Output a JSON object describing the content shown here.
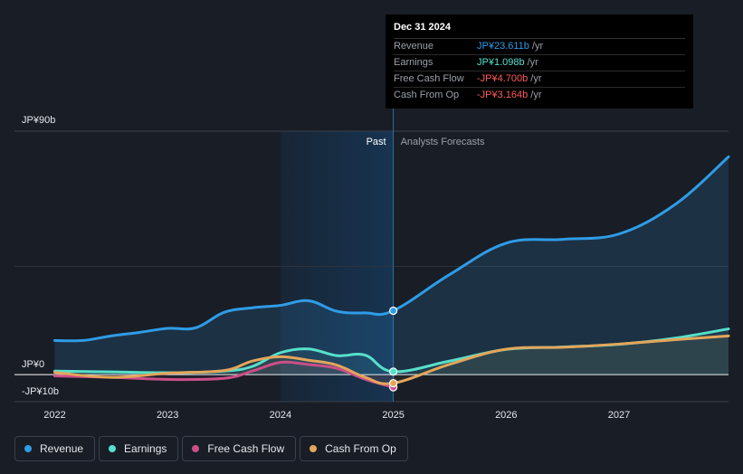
{
  "colors": {
    "background": "#181d26",
    "revenue": "#2f9ce6",
    "earnings": "#57e0cc",
    "fcf": "#cb4f87",
    "cfo": "#e3a65a",
    "negative": "#ff5a5a",
    "past_region": "#173451"
  },
  "tooltip": {
    "date": "Dec 31 2024",
    "rows": [
      {
        "label": "Revenue",
        "value": "JP¥23.611b",
        "unit": "/yr",
        "color": "#2f9ce6"
      },
      {
        "label": "Earnings",
        "value": "JP¥1.098b",
        "unit": "/yr",
        "color": "#57e0cc"
      },
      {
        "label": "Free Cash Flow",
        "value": "-JP¥4.700b",
        "unit": "/yr",
        "color": "#ff5a5a"
      },
      {
        "label": "Cash From Op",
        "value": "-JP¥3.164b",
        "unit": "/yr",
        "color": "#ff5a5a"
      }
    ]
  },
  "chart_data": {
    "type": "line",
    "title": "",
    "xlabel": "",
    "ylabel": "",
    "y_axis_labels": {
      "top": "JP¥90b",
      "zero": "JP¥0",
      "bottom": "-JP¥10b"
    },
    "ylim": [
      -10,
      90
    ],
    "xlim": [
      2021.9,
      2027.97
    ],
    "divider_x": 2025.0,
    "past_shade_start": 2024.0,
    "past_label": "Past",
    "forecast_label": "Analysts Forecasts",
    "x_ticks": [
      {
        "value": 2022,
        "label": "2022"
      },
      {
        "value": 2023,
        "label": "2023"
      },
      {
        "value": 2024,
        "label": "2024"
      },
      {
        "value": 2025,
        "label": "2025"
      },
      {
        "value": 2026,
        "label": "2026"
      },
      {
        "value": 2027,
        "label": "2027"
      }
    ],
    "series": [
      {
        "name": "Revenue",
        "color": "#2f9ce6",
        "filled": true,
        "points": [
          [
            2022.0,
            12.6
          ],
          [
            2022.25,
            12.6
          ],
          [
            2022.5,
            14.3
          ],
          [
            2022.75,
            15.6
          ],
          [
            2023.0,
            17.1
          ],
          [
            2023.25,
            17.3
          ],
          [
            2023.5,
            23.0
          ],
          [
            2023.75,
            24.7
          ],
          [
            2024.0,
            25.6
          ],
          [
            2024.25,
            27.3
          ],
          [
            2024.5,
            23.4
          ],
          [
            2024.75,
            22.8
          ],
          [
            2025.0,
            23.611
          ],
          [
            2025.5,
            37.0
          ],
          [
            2026.0,
            48.6
          ],
          [
            2026.5,
            50.0
          ],
          [
            2027.0,
            52.0
          ],
          [
            2027.5,
            63.0
          ],
          [
            2027.97,
            80.5
          ]
        ]
      },
      {
        "name": "Earnings",
        "color": "#57e0cc",
        "filled": false,
        "points": [
          [
            2022.0,
            1.3
          ],
          [
            2022.5,
            1.0
          ],
          [
            2023.0,
            0.7
          ],
          [
            2023.5,
            1.3
          ],
          [
            2023.75,
            3.0
          ],
          [
            2024.0,
            8.1
          ],
          [
            2024.25,
            9.5
          ],
          [
            2024.5,
            7.0
          ],
          [
            2024.75,
            7.2
          ],
          [
            2025.0,
            1.098
          ],
          [
            2025.5,
            5.0
          ],
          [
            2026.0,
            9.3
          ],
          [
            2026.5,
            10.2
          ],
          [
            2027.0,
            11.2
          ],
          [
            2027.5,
            13.5
          ],
          [
            2027.97,
            16.9
          ]
        ]
      },
      {
        "name": "Free Cash Flow",
        "color": "#cb4f87",
        "filled": false,
        "points": [
          [
            2022.0,
            -0.5
          ],
          [
            2022.5,
            -1.0
          ],
          [
            2023.0,
            -1.8
          ],
          [
            2023.5,
            -1.4
          ],
          [
            2023.75,
            1.3
          ],
          [
            2024.0,
            4.5
          ],
          [
            2024.25,
            3.7
          ],
          [
            2024.5,
            2.3
          ],
          [
            2024.75,
            -1.7
          ],
          [
            2025.0,
            -4.7
          ]
        ]
      },
      {
        "name": "Cash From Op",
        "color": "#e3a65a",
        "filled": false,
        "points": [
          [
            2022.0,
            0.8
          ],
          [
            2022.5,
            -1.0
          ],
          [
            2023.0,
            0.5
          ],
          [
            2023.5,
            1.5
          ],
          [
            2023.75,
            5.0
          ],
          [
            2024.0,
            6.6
          ],
          [
            2024.25,
            5.3
          ],
          [
            2024.5,
            3.5
          ],
          [
            2024.75,
            -1.0
          ],
          [
            2025.0,
            -3.164
          ],
          [
            2025.5,
            3.8
          ],
          [
            2026.0,
            9.4
          ],
          [
            2026.5,
            10.1
          ],
          [
            2027.0,
            11.3
          ],
          [
            2027.5,
            12.9
          ],
          [
            2027.97,
            14.3
          ]
        ]
      }
    ]
  },
  "legend": {
    "items": [
      {
        "label": "Revenue",
        "color": "#2f9ce6"
      },
      {
        "label": "Earnings",
        "color": "#57e0cc"
      },
      {
        "label": "Free Cash Flow",
        "color": "#cb4f87"
      },
      {
        "label": "Cash From Op",
        "color": "#e3a65a"
      }
    ]
  }
}
